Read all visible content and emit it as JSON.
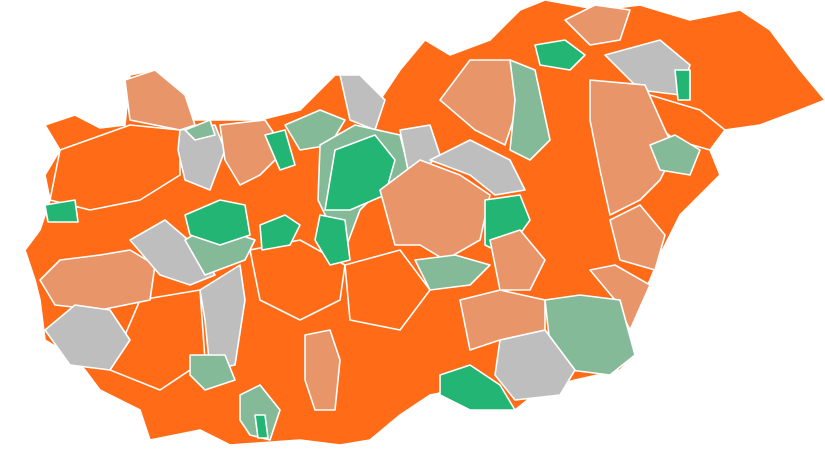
{
  "map": {
    "palette": {
      "orange": "#FF6B17",
      "light_orange": "#E8956A",
      "gray": "#BEBEBE",
      "light_green": "#84BA98",
      "green": "#22B573"
    },
    "background": "#FFFFFF",
    "border_color": "#FFFFFF"
  }
}
